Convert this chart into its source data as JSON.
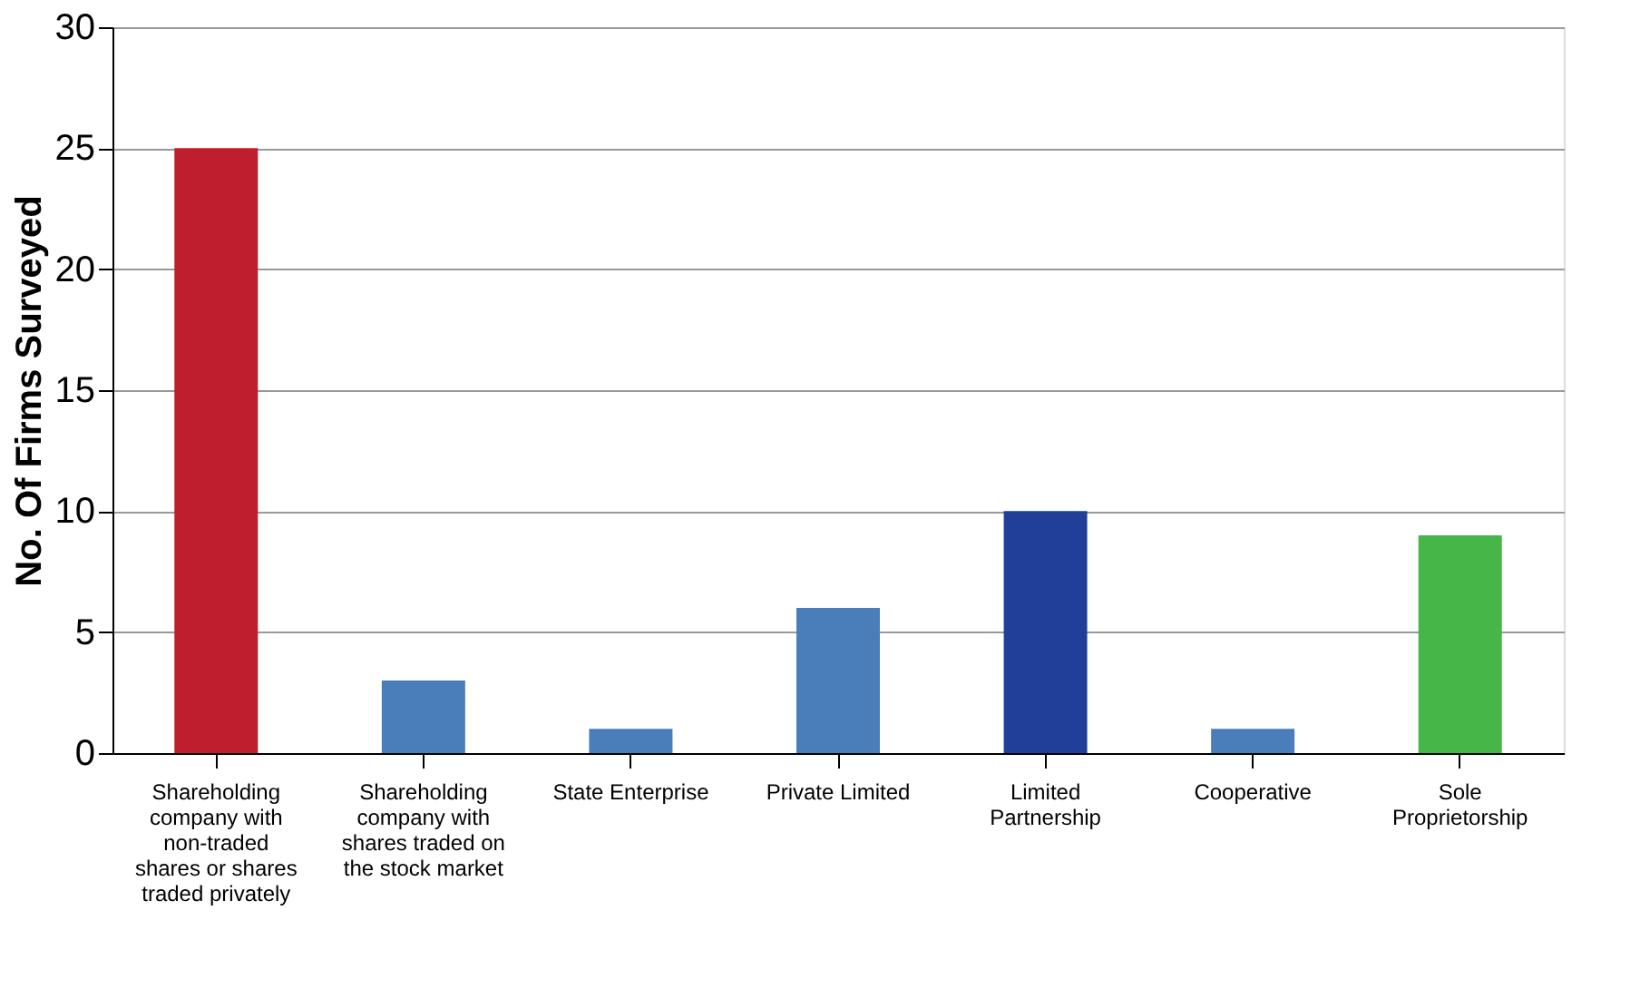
{
  "chart_data": {
    "type": "bar",
    "ylabel": "No. Of Firms Surveyed",
    "categories": [
      "Shareholding company with non-traded shares or shares traded privately",
      "Shareholding company with shares traded on the stock market",
      "State Enterprise",
      "Private Limited",
      "Limited Partnership",
      "Cooperative",
      "Sole Proprietorship"
    ],
    "values": [
      25,
      3,
      1,
      6,
      10,
      1,
      9
    ],
    "colors": [
      "#be1e2d",
      "#4a7ebb",
      "#4a7ebb",
      "#4a7ebb",
      "#1f3f99",
      "#4a7ebb",
      "#46b649"
    ],
    "ylim": [
      0,
      30
    ],
    "yticks": [
      0,
      5,
      10,
      15,
      20,
      25,
      30
    ],
    "grid": "y"
  }
}
